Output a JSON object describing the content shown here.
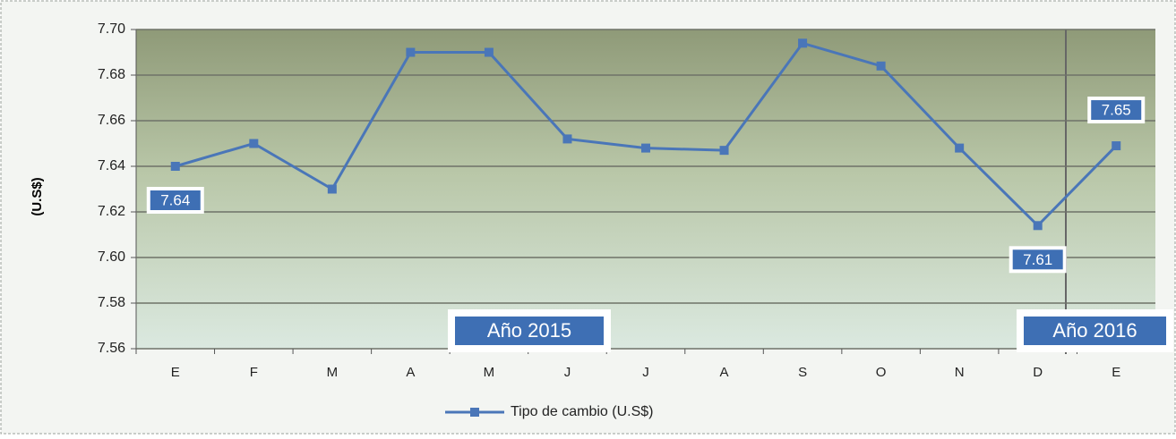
{
  "chart_data": {
    "type": "line",
    "y_label": "(U.S$)",
    "categories": [
      "E",
      "F",
      "M",
      "A",
      "M",
      "J",
      "J",
      "A",
      "S",
      "O",
      "N",
      "D",
      "E"
    ],
    "series": [
      {
        "name": "Tipo de cambio (U.S$)",
        "color": "#4a76b8",
        "values": [
          7.64,
          7.65,
          7.63,
          7.69,
          7.69,
          7.652,
          7.648,
          7.647,
          7.694,
          7.684,
          7.648,
          7.614,
          7.649
        ],
        "value_labels": [
          "7.64",
          null,
          null,
          null,
          null,
          null,
          null,
          null,
          null,
          null,
          null,
          "7.61",
          "7.65"
        ]
      }
    ],
    "annotations": [
      "Año 2015",
      "Año 2016"
    ],
    "ylim": [
      7.56,
      7.7
    ],
    "yticks": [
      7.56,
      7.58,
      {
        "value": 7.6,
        "label": "7.60"
      },
      7.62,
      7.64,
      7.66,
      7.68,
      {
        "value": 7.7,
        "label": "7.70"
      }
    ],
    "grid": true
  }
}
